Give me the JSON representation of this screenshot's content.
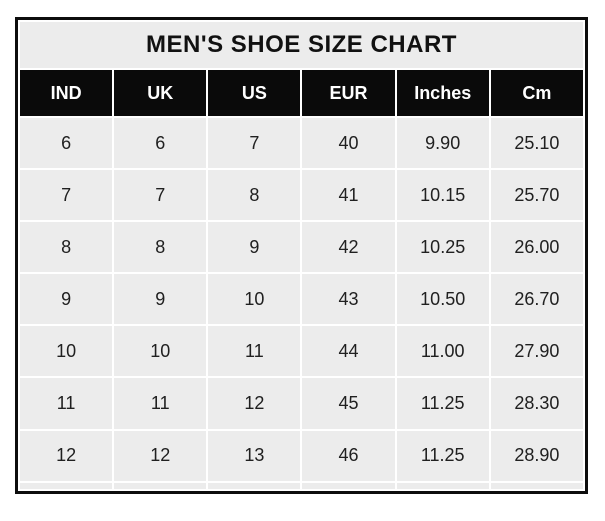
{
  "chart_data": {
    "type": "table",
    "title": "MEN'S SHOE SIZE CHART",
    "columns": [
      "IND",
      "UK",
      "US",
      "EUR",
      "Inches",
      "Cm"
    ],
    "rows": [
      [
        "6",
        "6",
        "7",
        "40",
        "9.90",
        "25.10"
      ],
      [
        "7",
        "7",
        "8",
        "41",
        "10.15",
        "25.70"
      ],
      [
        "8",
        "8",
        "9",
        "42",
        "10.25",
        "26.00"
      ],
      [
        "9",
        "9",
        "10",
        "43",
        "10.50",
        "26.70"
      ],
      [
        "10",
        "10",
        "11",
        "44",
        "11.00",
        "27.90"
      ],
      [
        "11",
        "11",
        "12",
        "45",
        "11.25",
        "28.30"
      ],
      [
        "12",
        "12",
        "13",
        "46",
        "11.25",
        "28.90"
      ]
    ],
    "layout": {
      "legend": "none",
      "grid": "white gridlines between cells"
    }
  },
  "colors": {
    "page_bg": "#ffffff",
    "outer_border": "#0d0d0d",
    "title_bg": "#ececec",
    "title_text": "#111111",
    "header_bg": "#0a0a0a",
    "header_text": "#ffffff",
    "cell_bg": "#ececec",
    "cell_text": "#202020",
    "gridline": "#ffffff"
  }
}
